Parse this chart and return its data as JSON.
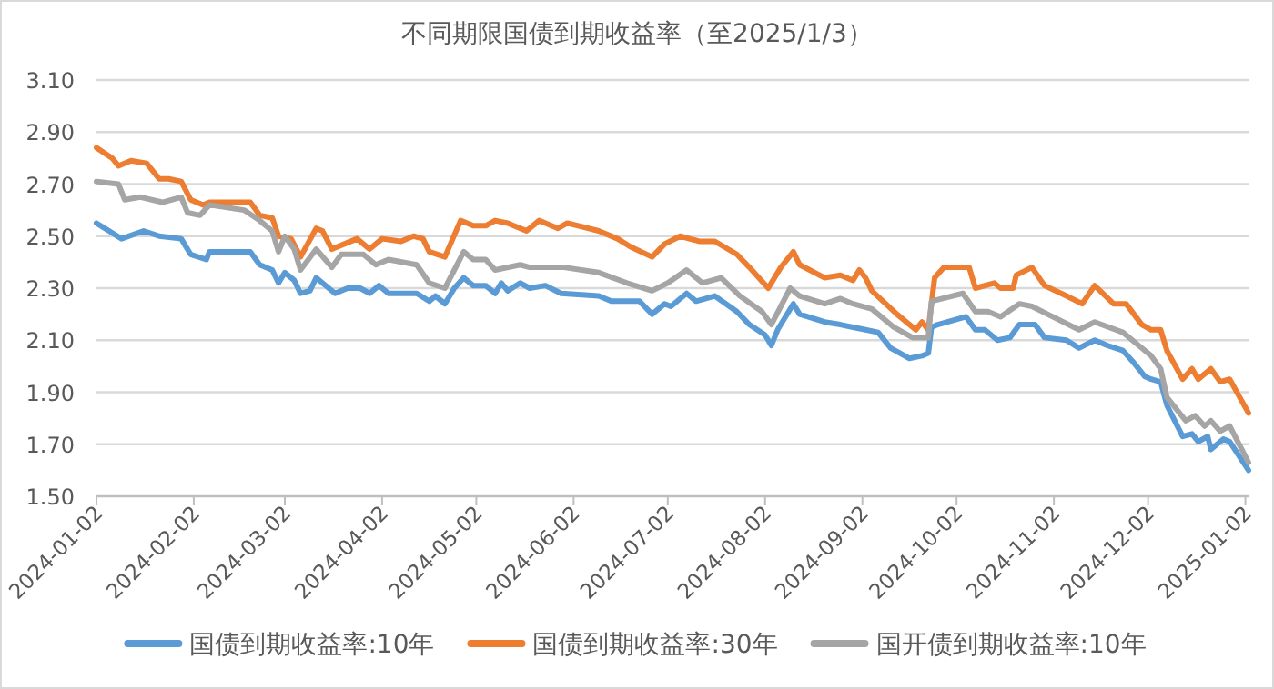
{
  "chart_data": {
    "type": "line",
    "title": "不同期限国债到期收益率（至2025/1/3）",
    "xlim": [
      "2024-01-02",
      "2025-01-03"
    ],
    "xticks": [
      "2024-01-02",
      "2024-02-02",
      "2024-03-02",
      "2024-04-02",
      "2024-05-02",
      "2024-06-02",
      "2024-07-02",
      "2024-08-02",
      "2024-09-02",
      "2024-10-02",
      "2024-11-02",
      "2024-12-02",
      "2025-01-02"
    ],
    "ylim": [
      1.5,
      3.1
    ],
    "yticks": [
      {
        "value": 1.5,
        "label": "1.50"
      },
      {
        "value": 1.7,
        "label": "1.70"
      },
      {
        "value": 1.9,
        "label": "1.90"
      },
      {
        "value": 2.1,
        "label": "2.10"
      },
      {
        "value": 2.3,
        "label": "2.30"
      },
      {
        "value": 2.5,
        "label": "2.50"
      },
      {
        "value": 2.7,
        "label": "2.70"
      },
      {
        "value": 2.9,
        "label": "2.90"
      },
      {
        "value": 3.1,
        "label": "3.10"
      }
    ],
    "grid": "y",
    "legend": "bottom",
    "line_style": "solid",
    "marker": "none",
    "series": [
      {
        "name": "国债到期收益率:10年",
        "color": "#5b9bd5",
        "x": [
          "2024-01-02",
          "2024-01-06",
          "2024-01-10",
          "2024-01-17",
          "2024-01-22",
          "2024-01-29",
          "2024-02-01",
          "2024-02-06",
          "2024-02-07",
          "2024-02-20",
          "2024-02-23",
          "2024-02-27",
          "2024-02-29",
          "2024-03-02",
          "2024-03-05",
          "2024-03-07",
          "2024-03-10",
          "2024-03-12",
          "2024-03-14",
          "2024-03-18",
          "2024-03-22",
          "2024-03-26",
          "2024-03-29",
          "2024-04-01",
          "2024-04-04",
          "2024-04-13",
          "2024-04-17",
          "2024-04-19",
          "2024-04-22",
          "2024-04-25",
          "2024-04-28",
          "2024-05-01",
          "2024-05-05",
          "2024-05-08",
          "2024-05-10",
          "2024-05-12",
          "2024-05-16",
          "2024-05-19",
          "2024-05-24",
          "2024-05-29",
          "2024-06-10",
          "2024-06-14",
          "2024-06-23",
          "2024-06-27",
          "2024-07-01",
          "2024-07-03",
          "2024-07-08",
          "2024-07-11",
          "2024-07-17",
          "2024-07-24",
          "2024-07-28",
          "2024-08-02",
          "2024-08-04",
          "2024-08-06",
          "2024-08-11",
          "2024-08-13",
          "2024-08-21",
          "2024-08-26",
          "2024-08-30",
          "2024-09-03",
          "2024-09-07",
          "2024-09-11",
          "2024-09-17",
          "2024-09-21",
          "2024-09-23",
          "2024-09-24",
          "2024-09-26",
          "2024-10-05",
          "2024-10-08",
          "2024-10-11",
          "2024-10-15",
          "2024-10-19",
          "2024-10-22",
          "2024-10-27",
          "2024-10-30",
          "2024-11-06",
          "2024-11-10",
          "2024-11-15",
          "2024-11-19",
          "2024-11-24",
          "2024-11-27",
          "2024-12-01",
          "2024-12-03",
          "2024-12-06",
          "2024-12-08",
          "2024-12-13",
          "2024-12-16",
          "2024-12-18",
          "2024-12-21",
          "2024-12-22",
          "2024-12-26",
          "2024-12-28",
          "2025-01-03"
        ],
        "values": [
          2.55,
          2.52,
          2.49,
          2.52,
          2.5,
          2.49,
          2.43,
          2.41,
          2.44,
          2.44,
          2.39,
          2.37,
          2.32,
          2.36,
          2.33,
          2.28,
          2.29,
          2.34,
          2.32,
          2.28,
          2.3,
          2.3,
          2.28,
          2.31,
          2.28,
          2.28,
          2.25,
          2.27,
          2.24,
          2.3,
          2.34,
          2.31,
          2.31,
          2.28,
          2.32,
          2.29,
          2.32,
          2.3,
          2.31,
          2.28,
          2.27,
          2.25,
          2.25,
          2.2,
          2.24,
          2.23,
          2.28,
          2.25,
          2.27,
          2.21,
          2.16,
          2.12,
          2.08,
          2.14,
          2.24,
          2.2,
          2.17,
          2.16,
          2.15,
          2.14,
          2.13,
          2.07,
          2.03,
          2.04,
          2.05,
          2.15,
          2.16,
          2.19,
          2.14,
          2.14,
          2.1,
          2.11,
          2.16,
          2.16,
          2.11,
          2.1,
          2.07,
          2.1,
          2.08,
          2.06,
          2.02,
          1.96,
          1.95,
          1.94,
          1.85,
          1.73,
          1.74,
          1.71,
          1.73,
          1.68,
          1.72,
          1.71,
          1.6
        ]
      },
      {
        "name": "国债到期收益率:30年",
        "color": "#ed7d31",
        "x": [
          "2024-01-02",
          "2024-01-07",
          "2024-01-09",
          "2024-01-13",
          "2024-01-18",
          "2024-01-22",
          "2024-01-25",
          "2024-01-29",
          "2024-02-01",
          "2024-02-05",
          "2024-02-07",
          "2024-02-20",
          "2024-02-23",
          "2024-02-27",
          "2024-02-29",
          "2024-03-04",
          "2024-03-07",
          "2024-03-12",
          "2024-03-14",
          "2024-03-17",
          "2024-03-25",
          "2024-03-29",
          "2024-04-02",
          "2024-04-08",
          "2024-04-12",
          "2024-04-15",
          "2024-04-17",
          "2024-04-22",
          "2024-04-27",
          "2024-05-01",
          "2024-05-05",
          "2024-05-08",
          "2024-05-12",
          "2024-05-18",
          "2024-05-22",
          "2024-05-28",
          "2024-05-31",
          "2024-06-10",
          "2024-06-16",
          "2024-06-20",
          "2024-06-27",
          "2024-07-01",
          "2024-07-06",
          "2024-07-12",
          "2024-07-17",
          "2024-07-24",
          "2024-07-28",
          "2024-08-03",
          "2024-08-07",
          "2024-08-11",
          "2024-08-13",
          "2024-08-21",
          "2024-08-26",
          "2024-08-30",
          "2024-09-01",
          "2024-09-03",
          "2024-09-05",
          "2024-09-13",
          "2024-09-19",
          "2024-09-21",
          "2024-09-23",
          "2024-09-25",
          "2024-09-28",
          "2024-10-06",
          "2024-10-08",
          "2024-10-14",
          "2024-10-16",
          "2024-10-20",
          "2024-10-21",
          "2024-10-26",
          "2024-10-30",
          "2024-11-06",
          "2024-11-11",
          "2024-11-15",
          "2024-11-21",
          "2024-11-25",
          "2024-11-30",
          "2024-12-03",
          "2024-12-06",
          "2024-12-08",
          "2024-12-13",
          "2024-12-16",
          "2024-12-18",
          "2024-12-22",
          "2024-12-25",
          "2024-12-28",
          "2025-01-03"
        ],
        "values": [
          2.84,
          2.8,
          2.77,
          2.79,
          2.78,
          2.72,
          2.72,
          2.71,
          2.64,
          2.62,
          2.63,
          2.63,
          2.58,
          2.57,
          2.5,
          2.49,
          2.42,
          2.53,
          2.52,
          2.45,
          2.49,
          2.45,
          2.49,
          2.48,
          2.5,
          2.49,
          2.44,
          2.42,
          2.56,
          2.54,
          2.54,
          2.56,
          2.55,
          2.52,
          2.56,
          2.53,
          2.55,
          2.52,
          2.49,
          2.46,
          2.42,
          2.47,
          2.5,
          2.48,
          2.48,
          2.43,
          2.38,
          2.3,
          2.38,
          2.44,
          2.39,
          2.34,
          2.35,
          2.33,
          2.37,
          2.34,
          2.29,
          2.2,
          2.14,
          2.17,
          2.14,
          2.34,
          2.38,
          2.38,
          2.3,
          2.32,
          2.3,
          2.3,
          2.35,
          2.38,
          2.31,
          2.27,
          2.24,
          2.31,
          2.24,
          2.24,
          2.16,
          2.14,
          2.14,
          2.06,
          1.95,
          1.99,
          1.95,
          1.99,
          1.94,
          1.95,
          1.82
        ]
      },
      {
        "name": "国开债到期收益率:10年",
        "color": "#a5a5a5",
        "x": [
          "2024-01-02",
          "2024-01-09",
          "2024-01-11",
          "2024-01-16",
          "2024-01-23",
          "2024-01-29",
          "2024-01-31",
          "2024-02-04",
          "2024-02-07",
          "2024-02-18",
          "2024-02-23",
          "2024-02-27",
          "2024-02-29",
          "2024-03-02",
          "2024-03-05",
          "2024-03-07",
          "2024-03-12",
          "2024-03-17",
          "2024-03-20",
          "2024-03-27",
          "2024-03-31",
          "2024-04-04",
          "2024-04-13",
          "2024-04-17",
          "2024-04-22",
          "2024-04-28",
          "2024-05-01",
          "2024-05-05",
          "2024-05-08",
          "2024-05-16",
          "2024-05-19",
          "2024-05-30",
          "2024-06-10",
          "2024-06-19",
          "2024-06-27",
          "2024-07-02",
          "2024-07-08",
          "2024-07-13",
          "2024-07-19",
          "2024-07-25",
          "2024-08-01",
          "2024-08-04",
          "2024-08-10",
          "2024-08-13",
          "2024-08-21",
          "2024-08-26",
          "2024-08-30",
          "2024-09-05",
          "2024-09-12",
          "2024-09-18",
          "2024-09-23",
          "2024-09-24",
          "2024-10-04",
          "2024-10-08",
          "2024-10-12",
          "2024-10-16",
          "2024-10-22",
          "2024-10-26",
          "2024-10-31",
          "2024-11-10",
          "2024-11-15",
          "2024-11-24",
          "2024-11-29",
          "2024-12-03",
          "2024-12-06",
          "2024-12-08",
          "2024-12-14",
          "2024-12-17",
          "2024-12-20",
          "2024-12-22",
          "2024-12-25",
          "2024-12-28",
          "2025-01-03"
        ],
        "values": [
          2.71,
          2.7,
          2.64,
          2.65,
          2.63,
          2.65,
          2.59,
          2.58,
          2.62,
          2.6,
          2.56,
          2.52,
          2.44,
          2.5,
          2.45,
          2.37,
          2.45,
          2.38,
          2.43,
          2.43,
          2.39,
          2.41,
          2.39,
          2.32,
          2.3,
          2.44,
          2.41,
          2.41,
          2.37,
          2.39,
          2.38,
          2.38,
          2.36,
          2.32,
          2.29,
          2.32,
          2.37,
          2.32,
          2.34,
          2.27,
          2.21,
          2.16,
          2.3,
          2.27,
          2.24,
          2.26,
          2.24,
          2.22,
          2.15,
          2.11,
          2.11,
          2.25,
          2.28,
          2.21,
          2.21,
          2.19,
          2.24,
          2.23,
          2.2,
          2.14,
          2.17,
          2.13,
          2.08,
          2.04,
          1.99,
          1.88,
          1.79,
          1.81,
          1.77,
          1.79,
          1.75,
          1.77,
          1.63
        ]
      }
    ]
  }
}
